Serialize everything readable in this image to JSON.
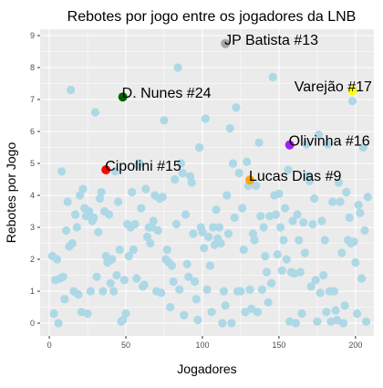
{
  "chart_data": {
    "type": "scatter",
    "title": "Rebotes por jogo entre os jogadores da LNB",
    "xlabel": "Jogadores",
    "ylabel": "Rebotes por Jogo",
    "xlim": [
      -6,
      212
    ],
    "ylim": [
      -0.4,
      9.2
    ],
    "xticks": [
      0,
      50,
      100,
      150,
      200
    ],
    "yticks": [
      0,
      1,
      2,
      3,
      4,
      5,
      6,
      7,
      8,
      9
    ],
    "grid": true,
    "legend": "none",
    "point_color": "#add8e6",
    "panel_background": "#ebebeb",
    "gridline_color": "#ffffff",
    "highlighted": [
      {
        "label": "JP Batista #13",
        "x": 115,
        "y": 8.75,
        "color": "#a6a6a6"
      },
      {
        "label": "D. Nunes #24",
        "x": 48,
        "y": 7.08,
        "color": "#006400"
      },
      {
        "label": "Varejão #17",
        "x": 198,
        "y": 7.28,
        "color": "#ffff00"
      },
      {
        "label": "Olivinha #16",
        "x": 157,
        "y": 5.58,
        "color": "#a020f0"
      },
      {
        "label": "Cipolini #15",
        "x": 37,
        "y": 4.8,
        "color": "#ff0000"
      },
      {
        "label": "Lucas Dias #9",
        "x": 131,
        "y": 4.48,
        "color": "#ffa500"
      }
    ],
    "points": [
      [
        2,
        2.1
      ],
      [
        3,
        0.3
      ],
      [
        4,
        1.35
      ],
      [
        5,
        2.0
      ],
      [
        6,
        0.0
      ],
      [
        7,
        1.4
      ],
      [
        8,
        4.75
      ],
      [
        9,
        1.45
      ],
      [
        10,
        0.75
      ],
      [
        11,
        2.9
      ],
      [
        12,
        3.8
      ],
      [
        13,
        2.4
      ],
      [
        14,
        7.3
      ],
      [
        15,
        2.5
      ],
      [
        16,
        1.0
      ],
      [
        17,
        3.4
      ],
      [
        18,
        3.0
      ],
      [
        19,
        0.9
      ],
      [
        20,
        4.0
      ],
      [
        21,
        0.35
      ],
      [
        22,
        4.2
      ],
      [
        23,
        3.6
      ],
      [
        24,
        3.35
      ],
      [
        25,
        0.3
      ],
      [
        26,
        3.5
      ],
      [
        27,
        1.0
      ],
      [
        28,
        3.2
      ],
      [
        29,
        3.3
      ],
      [
        30,
        6.6
      ],
      [
        31,
        1.45
      ],
      [
        32,
        2.85
      ],
      [
        33,
        3.9
      ],
      [
        34,
        4.1
      ],
      [
        35,
        1.0
      ],
      [
        36,
        3.5
      ],
      [
        37,
        2.1
      ],
      [
        38,
        1.9
      ],
      [
        39,
        3.4
      ],
      [
        40,
        1.25
      ],
      [
        41,
        2.0
      ],
      [
        42,
        1.0
      ],
      [
        43,
        4.75
      ],
      [
        44,
        1.5
      ],
      [
        45,
        3.8
      ],
      [
        46,
        2.3
      ],
      [
        47,
        0.05
      ],
      [
        48,
        0.1
      ],
      [
        49,
        1.35
      ],
      [
        50,
        0.3
      ],
      [
        51,
        3.1
      ],
      [
        52,
        2.1
      ],
      [
        53,
        3.0
      ],
      [
        54,
        4.1
      ],
      [
        55,
        2.3
      ],
      [
        56,
        3.1
      ],
      [
        57,
        1.4
      ],
      [
        58,
        4.95
      ],
      [
        59,
        5.0
      ],
      [
        60,
        3.6
      ],
      [
        61,
        1.15
      ],
      [
        62,
        1.2
      ],
      [
        63,
        4.2
      ],
      [
        64,
        2.7
      ],
      [
        65,
        3.0
      ],
      [
        66,
        2.5
      ],
      [
        67,
        3.0
      ],
      [
        68,
        3.2
      ],
      [
        69,
        4.0
      ],
      [
        70,
        1.0
      ],
      [
        71,
        2.9
      ],
      [
        72,
        3.9
      ],
      [
        73,
        0.95
      ],
      [
        74,
        3.95
      ],
      [
        75,
        6.35
      ],
      [
        76,
        2.0
      ],
      [
        77,
        2.3
      ],
      [
        78,
        1.9
      ],
      [
        79,
        0.5
      ],
      [
        80,
        1.8
      ],
      [
        81,
        1.3
      ],
      [
        82,
        4.5
      ],
      [
        83,
        3.1
      ],
      [
        84,
        8.0
      ],
      [
        85,
        1.05
      ],
      [
        86,
        5.0
      ],
      [
        87,
        4.7
      ],
      [
        88,
        0.25
      ],
      [
        89,
        3.4
      ],
      [
        90,
        1.85
      ],
      [
        91,
        1.45
      ],
      [
        92,
        4.6
      ],
      [
        93,
        4.4
      ],
      [
        94,
        2.8
      ],
      [
        95,
        1.3
      ],
      [
        96,
        0.75
      ],
      [
        97,
        0.1
      ],
      [
        98,
        5.5
      ],
      [
        99,
        3.0
      ],
      [
        100,
        2.85
      ],
      [
        101,
        2.35
      ],
      [
        102,
        6.4
      ],
      [
        103,
        1.05
      ],
      [
        104,
        2.7
      ],
      [
        105,
        1.8
      ],
      [
        106,
        0.35
      ],
      [
        107,
        3.0
      ],
      [
        108,
        2.45
      ],
      [
        109,
        3.55
      ],
      [
        110,
        2.65
      ],
      [
        111,
        3.0
      ],
      [
        112,
        2.5
      ],
      [
        113,
        0.0
      ],
      [
        114,
        1.0
      ],
      [
        115,
        0.55
      ],
      [
        116,
        4.0
      ],
      [
        117,
        2.8
      ],
      [
        118,
        6.1
      ],
      [
        119,
        0.0
      ],
      [
        120,
        5.0
      ],
      [
        121,
        3.3
      ],
      [
        122,
        6.75
      ],
      [
        123,
        1.0
      ],
      [
        124,
        4.7
      ],
      [
        125,
        1.0
      ],
      [
        126,
        3.6
      ],
      [
        127,
        2.3
      ],
      [
        128,
        0.35
      ],
      [
        129,
        5.05
      ],
      [
        130,
        4.3
      ],
      [
        131,
        1.05
      ],
      [
        132,
        0.45
      ],
      [
        133,
        2.8
      ],
      [
        134,
        2.6
      ],
      [
        135,
        4.3
      ],
      [
        136,
        0.35
      ],
      [
        137,
        5.65
      ],
      [
        138,
        3.35
      ],
      [
        139,
        1.05
      ],
      [
        140,
        3.0
      ],
      [
        141,
        2.1
      ],
      [
        142,
        1.6
      ],
      [
        143,
        0.65
      ],
      [
        144,
        3.35
      ],
      [
        145,
        1.25
      ],
      [
        146,
        7.7
      ],
      [
        147,
        4.0
      ],
      [
        148,
        3.4
      ],
      [
        149,
        2.15
      ],
      [
        150,
        4.05
      ],
      [
        151,
        3.0
      ],
      [
        152,
        1.65
      ],
      [
        153,
        2.6
      ],
      [
        154,
        3.6
      ],
      [
        155,
        2.0
      ],
      [
        156,
        4.8
      ],
      [
        157,
        0.05
      ],
      [
        158,
        1.6
      ],
      [
        159,
        3.2
      ],
      [
        160,
        1.55
      ],
      [
        161,
        0.0
      ],
      [
        162,
        3.4
      ],
      [
        163,
        2.6
      ],
      [
        164,
        1.6
      ],
      [
        165,
        0.3
      ],
      [
        166,
        3.15
      ],
      [
        167,
        2.2
      ],
      [
        168,
        5.6
      ],
      [
        169,
        4.6
      ],
      [
        170,
        4.45
      ],
      [
        171,
        1.15
      ],
      [
        172,
        3.1
      ],
      [
        173,
        3.9
      ],
      [
        174,
        1.35
      ],
      [
        175,
        0.05
      ],
      [
        176,
        5.9
      ],
      [
        177,
        0.95
      ],
      [
        178,
        3.2
      ],
      [
        179,
        1.5
      ],
      [
        180,
        2.6
      ],
      [
        181,
        0.35
      ],
      [
        182,
        5.6
      ],
      [
        183,
        1.0
      ],
      [
        184,
        0.05
      ],
      [
        185,
        3.8
      ],
      [
        186,
        1.0
      ],
      [
        187,
        0.4
      ],
      [
        188,
        0.1
      ],
      [
        189,
        4.4
      ],
      [
        190,
        3.8
      ],
      [
        191,
        2.2
      ],
      [
        192,
        0.0
      ],
      [
        193,
        0.55
      ],
      [
        194,
        4.1
      ],
      [
        195,
        2.6
      ],
      [
        196,
        3.3
      ],
      [
        197,
        2.5
      ],
      [
        198,
        6.95
      ],
      [
        199,
        2.55
      ],
      [
        200,
        1.9
      ],
      [
        201,
        0.3
      ],
      [
        202,
        3.7
      ],
      [
        203,
        3.45
      ],
      [
        204,
        1.4
      ],
      [
        205,
        5.5
      ],
      [
        206,
        2.9
      ],
      [
        207,
        0.05
      ],
      [
        208,
        3.95
      ]
    ]
  }
}
